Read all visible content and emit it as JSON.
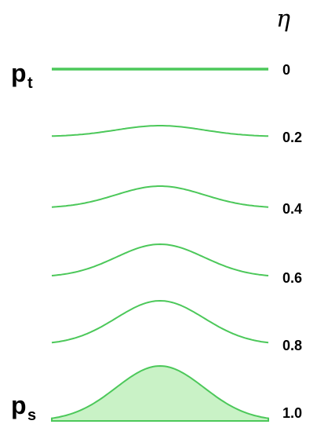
{
  "axis_symbol": "η",
  "left_labels": [
    {
      "main": "p",
      "sub": "t"
    },
    {
      "main": "p",
      "sub": "s"
    }
  ],
  "curves": [
    {
      "label": "0",
      "eta": 0.0
    },
    {
      "label": "0.2",
      "eta": 0.2
    },
    {
      "label": "0.4",
      "eta": 0.4
    },
    {
      "label": "0.6",
      "eta": 0.6
    },
    {
      "label": "0.8",
      "eta": 0.8
    },
    {
      "label": "1.0",
      "eta": 1.0,
      "filled": true
    }
  ],
  "colors": {
    "line": "#4cc85a",
    "fill": "#c9f2c6"
  }
}
